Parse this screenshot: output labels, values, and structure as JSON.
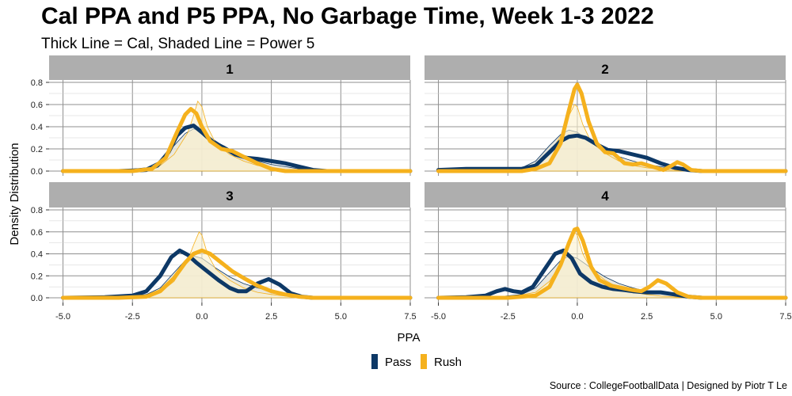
{
  "title": "Cal PPA and P5 PPA, No Garbage Time, Week 1-3 2022",
  "subtitle": "Thick Line = Cal, Shaded Line = Power 5",
  "caption": "Source : CollegeFootballData | Designed by Piotr T Le",
  "colors": {
    "pass": "#0d3866",
    "rush": "#f5b11d",
    "strip": "#aeaeae",
    "shade": "#e6e4d7",
    "grid": "#8f8f8f"
  },
  "chart_data": {
    "type": "line",
    "title": "Cal PPA and P5 PPA, No Garbage Time, Week 1-3 2022",
    "subtitle": "Thick Line = Cal, Shaded Line = Power 5",
    "xlabel": "PPA",
    "ylabel": "Density Distribution",
    "xlim": [
      -5.5,
      7.5
    ],
    "ylim": [
      0,
      0.8
    ],
    "xticks": [
      -5.0,
      -2.5,
      0.0,
      2.5,
      5.0,
      7.5
    ],
    "xtick_labels": [
      "-5.0",
      "-2.5",
      "0.0",
      "2.5",
      "5.0",
      "7.5"
    ],
    "yticks": [
      0.0,
      0.2,
      0.4,
      0.6,
      0.8
    ],
    "ytick_labels": [
      "0.0",
      "0.2",
      "0.4",
      "0.6",
      "0.8"
    ],
    "legend": {
      "position": "bottom",
      "entries": [
        "Pass",
        "Rush"
      ]
    },
    "panels": [
      {
        "label": "1",
        "cal_pass": [
          [
            -5.0,
            0
          ],
          [
            -3.0,
            0
          ],
          [
            -2.0,
            0.01
          ],
          [
            -1.6,
            0.05
          ],
          [
            -1.2,
            0.17
          ],
          [
            -0.9,
            0.32
          ],
          [
            -0.6,
            0.39
          ],
          [
            -0.3,
            0.41
          ],
          [
            0.0,
            0.35
          ],
          [
            0.4,
            0.26
          ],
          [
            0.8,
            0.21
          ],
          [
            1.2,
            0.15
          ],
          [
            1.6,
            0.12
          ],
          [
            2.0,
            0.11
          ],
          [
            2.5,
            0.09
          ],
          [
            3.0,
            0.07
          ],
          [
            3.5,
            0.04
          ],
          [
            4.0,
            0.01
          ],
          [
            4.5,
            0
          ],
          [
            7.5,
            0
          ]
        ],
        "cal_rush": [
          [
            -5.0,
            0
          ],
          [
            -2.5,
            0
          ],
          [
            -1.8,
            0.02
          ],
          [
            -1.3,
            0.12
          ],
          [
            -0.9,
            0.35
          ],
          [
            -0.6,
            0.51
          ],
          [
            -0.4,
            0.56
          ],
          [
            -0.2,
            0.52
          ],
          [
            0.0,
            0.4
          ],
          [
            0.3,
            0.27
          ],
          [
            0.7,
            0.2
          ],
          [
            1.1,
            0.18
          ],
          [
            1.5,
            0.13
          ],
          [
            2.0,
            0.07
          ],
          [
            2.5,
            0.02
          ],
          [
            3.0,
            0
          ],
          [
            7.5,
            0
          ]
        ],
        "p5_pass": [
          [
            -5.0,
            0
          ],
          [
            -3.0,
            0.005
          ],
          [
            -2.0,
            0.03
          ],
          [
            -1.5,
            0.09
          ],
          [
            -1.0,
            0.23
          ],
          [
            -0.6,
            0.34
          ],
          [
            -0.3,
            0.38
          ],
          [
            0.0,
            0.36
          ],
          [
            0.5,
            0.27
          ],
          [
            1.0,
            0.19
          ],
          [
            1.5,
            0.13
          ],
          [
            2.0,
            0.09
          ],
          [
            2.5,
            0.06
          ],
          [
            3.0,
            0.04
          ],
          [
            3.5,
            0.02
          ],
          [
            4.0,
            0.005
          ],
          [
            4.5,
            0
          ],
          [
            7.5,
            0
          ]
        ],
        "p5_rush": [
          [
            -5.0,
            0
          ],
          [
            -2.5,
            0.005
          ],
          [
            -1.5,
            0.05
          ],
          [
            -1.0,
            0.15
          ],
          [
            -0.5,
            0.35
          ],
          [
            -0.3,
            0.5
          ],
          [
            -0.15,
            0.63
          ],
          [
            0.0,
            0.58
          ],
          [
            0.2,
            0.4
          ],
          [
            0.5,
            0.25
          ],
          [
            1.0,
            0.15
          ],
          [
            1.5,
            0.09
          ],
          [
            2.0,
            0.05
          ],
          [
            2.5,
            0.03
          ],
          [
            3.0,
            0.015
          ],
          [
            4.0,
            0
          ],
          [
            7.5,
            0
          ]
        ]
      },
      {
        "label": "2",
        "cal_pass": [
          [
            -5.0,
            0.01
          ],
          [
            -4.0,
            0.02
          ],
          [
            -3.0,
            0.02
          ],
          [
            -2.0,
            0.02
          ],
          [
            -1.5,
            0.05
          ],
          [
            -1.0,
            0.17
          ],
          [
            -0.6,
            0.27
          ],
          [
            -0.3,
            0.31
          ],
          [
            0.0,
            0.32
          ],
          [
            0.3,
            0.3
          ],
          [
            0.7,
            0.24
          ],
          [
            1.1,
            0.19
          ],
          [
            1.5,
            0.18
          ],
          [
            2.0,
            0.15
          ],
          [
            2.5,
            0.12
          ],
          [
            3.0,
            0.07
          ],
          [
            3.5,
            0.03
          ],
          [
            4.0,
            0.01
          ],
          [
            4.5,
            0
          ],
          [
            7.5,
            0
          ]
        ],
        "cal_rush": [
          [
            -5.0,
            0
          ],
          [
            -2.0,
            0
          ],
          [
            -1.5,
            0.02
          ],
          [
            -1.0,
            0.07
          ],
          [
            -0.6,
            0.25
          ],
          [
            -0.3,
            0.55
          ],
          [
            -0.1,
            0.74
          ],
          [
            0.0,
            0.78
          ],
          [
            0.15,
            0.7
          ],
          [
            0.4,
            0.45
          ],
          [
            0.7,
            0.25
          ],
          [
            1.0,
            0.17
          ],
          [
            1.3,
            0.16
          ],
          [
            1.7,
            0.07
          ],
          [
            2.0,
            0.06
          ],
          [
            2.3,
            0.07
          ],
          [
            2.7,
            0.04
          ],
          [
            3.1,
            0.01
          ],
          [
            3.4,
            0.05
          ],
          [
            3.6,
            0.08
          ],
          [
            3.8,
            0.06
          ],
          [
            4.1,
            0.01
          ],
          [
            4.5,
            0
          ],
          [
            7.5,
            0
          ]
        ],
        "p5_pass": [
          [
            -5.0,
            0
          ],
          [
            -3.0,
            0.005
          ],
          [
            -2.0,
            0.03
          ],
          [
            -1.5,
            0.09
          ],
          [
            -1.0,
            0.23
          ],
          [
            -0.6,
            0.33
          ],
          [
            -0.3,
            0.37
          ],
          [
            0.0,
            0.35
          ],
          [
            0.5,
            0.26
          ],
          [
            1.0,
            0.19
          ],
          [
            1.5,
            0.13
          ],
          [
            2.0,
            0.09
          ],
          [
            2.5,
            0.06
          ],
          [
            3.0,
            0.04
          ],
          [
            3.5,
            0.02
          ],
          [
            4.0,
            0.005
          ],
          [
            4.5,
            0
          ],
          [
            7.5,
            0
          ]
        ],
        "p5_rush": [
          [
            -5.0,
            0
          ],
          [
            -2.5,
            0.005
          ],
          [
            -1.5,
            0.05
          ],
          [
            -1.0,
            0.15
          ],
          [
            -0.5,
            0.36
          ],
          [
            -0.3,
            0.5
          ],
          [
            -0.1,
            0.6
          ],
          [
            0.0,
            0.58
          ],
          [
            0.2,
            0.42
          ],
          [
            0.5,
            0.26
          ],
          [
            1.0,
            0.16
          ],
          [
            1.5,
            0.09
          ],
          [
            2.0,
            0.05
          ],
          [
            2.5,
            0.03
          ],
          [
            3.0,
            0.015
          ],
          [
            4.0,
            0
          ],
          [
            7.5,
            0
          ]
        ]
      },
      {
        "label": "3",
        "cal_pass": [
          [
            -5.0,
            0
          ],
          [
            -3.5,
            0.005
          ],
          [
            -2.5,
            0.02
          ],
          [
            -2.0,
            0.06
          ],
          [
            -1.5,
            0.2
          ],
          [
            -1.1,
            0.37
          ],
          [
            -0.8,
            0.43
          ],
          [
            -0.5,
            0.39
          ],
          [
            -0.2,
            0.32
          ],
          [
            0.2,
            0.24
          ],
          [
            0.6,
            0.16
          ],
          [
            1.0,
            0.09
          ],
          [
            1.3,
            0.06
          ],
          [
            1.6,
            0.06
          ],
          [
            2.0,
            0.13
          ],
          [
            2.4,
            0.17
          ],
          [
            2.8,
            0.12
          ],
          [
            3.2,
            0.04
          ],
          [
            3.6,
            0.01
          ],
          [
            4.0,
            0
          ],
          [
            7.5,
            0
          ]
        ],
        "cal_rush": [
          [
            -5.0,
            0
          ],
          [
            -3.0,
            0
          ],
          [
            -2.0,
            0.01
          ],
          [
            -1.5,
            0.06
          ],
          [
            -1.0,
            0.18
          ],
          [
            -0.6,
            0.32
          ],
          [
            -0.3,
            0.4
          ],
          [
            0.0,
            0.43
          ],
          [
            0.3,
            0.4
          ],
          [
            0.7,
            0.32
          ],
          [
            1.1,
            0.24
          ],
          [
            1.5,
            0.18
          ],
          [
            2.0,
            0.11
          ],
          [
            2.5,
            0.06
          ],
          [
            3.0,
            0.03
          ],
          [
            3.5,
            0.01
          ],
          [
            4.0,
            0
          ],
          [
            7.5,
            0
          ]
        ],
        "p5_pass": [
          [
            -5.0,
            0
          ],
          [
            -3.0,
            0.005
          ],
          [
            -2.0,
            0.03
          ],
          [
            -1.5,
            0.09
          ],
          [
            -1.0,
            0.23
          ],
          [
            -0.6,
            0.34
          ],
          [
            -0.3,
            0.38
          ],
          [
            0.0,
            0.36
          ],
          [
            0.5,
            0.27
          ],
          [
            1.0,
            0.19
          ],
          [
            1.5,
            0.13
          ],
          [
            2.0,
            0.09
          ],
          [
            2.5,
            0.06
          ],
          [
            3.0,
            0.04
          ],
          [
            3.5,
            0.02
          ],
          [
            4.0,
            0.005
          ],
          [
            4.5,
            0
          ],
          [
            7.5,
            0
          ]
        ],
        "p5_rush": [
          [
            -5.0,
            0
          ],
          [
            -2.5,
            0.005
          ],
          [
            -1.5,
            0.05
          ],
          [
            -1.0,
            0.15
          ],
          [
            -0.5,
            0.35
          ],
          [
            -0.3,
            0.48
          ],
          [
            -0.1,
            0.6
          ],
          [
            0.0,
            0.57
          ],
          [
            0.2,
            0.4
          ],
          [
            0.5,
            0.26
          ],
          [
            1.0,
            0.16
          ],
          [
            1.5,
            0.09
          ],
          [
            2.0,
            0.05
          ],
          [
            2.5,
            0.03
          ],
          [
            3.0,
            0.015
          ],
          [
            4.0,
            0
          ],
          [
            7.5,
            0
          ]
        ]
      },
      {
        "label": "4",
        "cal_pass": [
          [
            -5.0,
            0
          ],
          [
            -4.0,
            0.005
          ],
          [
            -3.3,
            0.02
          ],
          [
            -2.9,
            0.06
          ],
          [
            -2.6,
            0.08
          ],
          [
            -2.3,
            0.06
          ],
          [
            -2.0,
            0.05
          ],
          [
            -1.6,
            0.1
          ],
          [
            -1.2,
            0.25
          ],
          [
            -0.8,
            0.4
          ],
          [
            -0.5,
            0.43
          ],
          [
            -0.2,
            0.36
          ],
          [
            0.1,
            0.22
          ],
          [
            0.5,
            0.14
          ],
          [
            0.9,
            0.1
          ],
          [
            1.3,
            0.08
          ],
          [
            1.7,
            0.07
          ],
          [
            2.0,
            0.06
          ],
          [
            2.5,
            0.05
          ],
          [
            3.0,
            0.05
          ],
          [
            3.5,
            0.03
          ],
          [
            4.0,
            0.01
          ],
          [
            4.5,
            0
          ],
          [
            7.5,
            0
          ]
        ],
        "cal_rush": [
          [
            -5.0,
            0
          ],
          [
            -2.5,
            0
          ],
          [
            -1.5,
            0.02
          ],
          [
            -1.0,
            0.1
          ],
          [
            -0.6,
            0.3
          ],
          [
            -0.3,
            0.5
          ],
          [
            -0.1,
            0.62
          ],
          [
            0.0,
            0.63
          ],
          [
            0.2,
            0.52
          ],
          [
            0.5,
            0.28
          ],
          [
            0.8,
            0.16
          ],
          [
            1.2,
            0.11
          ],
          [
            1.6,
            0.09
          ],
          [
            2.0,
            0.07
          ],
          [
            2.3,
            0.06
          ],
          [
            2.6,
            0.1
          ],
          [
            2.9,
            0.16
          ],
          [
            3.2,
            0.13
          ],
          [
            3.6,
            0.05
          ],
          [
            4.0,
            0.01
          ],
          [
            4.5,
            0
          ],
          [
            7.5,
            0
          ]
        ],
        "p5_pass": [
          [
            -5.0,
            0
          ],
          [
            -3.0,
            0.005
          ],
          [
            -2.0,
            0.03
          ],
          [
            -1.5,
            0.09
          ],
          [
            -1.0,
            0.23
          ],
          [
            -0.6,
            0.34
          ],
          [
            -0.3,
            0.38
          ],
          [
            0.0,
            0.36
          ],
          [
            0.5,
            0.27
          ],
          [
            1.0,
            0.19
          ],
          [
            1.5,
            0.13
          ],
          [
            2.0,
            0.09
          ],
          [
            2.5,
            0.06
          ],
          [
            3.0,
            0.04
          ],
          [
            3.5,
            0.02
          ],
          [
            4.0,
            0.005
          ],
          [
            4.5,
            0
          ],
          [
            7.5,
            0
          ]
        ],
        "p5_rush": [
          [
            -5.0,
            0
          ],
          [
            -2.5,
            0.005
          ],
          [
            -1.5,
            0.05
          ],
          [
            -1.0,
            0.15
          ],
          [
            -0.5,
            0.35
          ],
          [
            -0.3,
            0.48
          ],
          [
            -0.1,
            0.6
          ],
          [
            0.0,
            0.57
          ],
          [
            0.2,
            0.4
          ],
          [
            0.5,
            0.26
          ],
          [
            1.0,
            0.16
          ],
          [
            1.5,
            0.09
          ],
          [
            2.0,
            0.05
          ],
          [
            2.5,
            0.03
          ],
          [
            3.0,
            0.015
          ],
          [
            4.0,
            0
          ],
          [
            7.5,
            0
          ]
        ]
      }
    ]
  }
}
